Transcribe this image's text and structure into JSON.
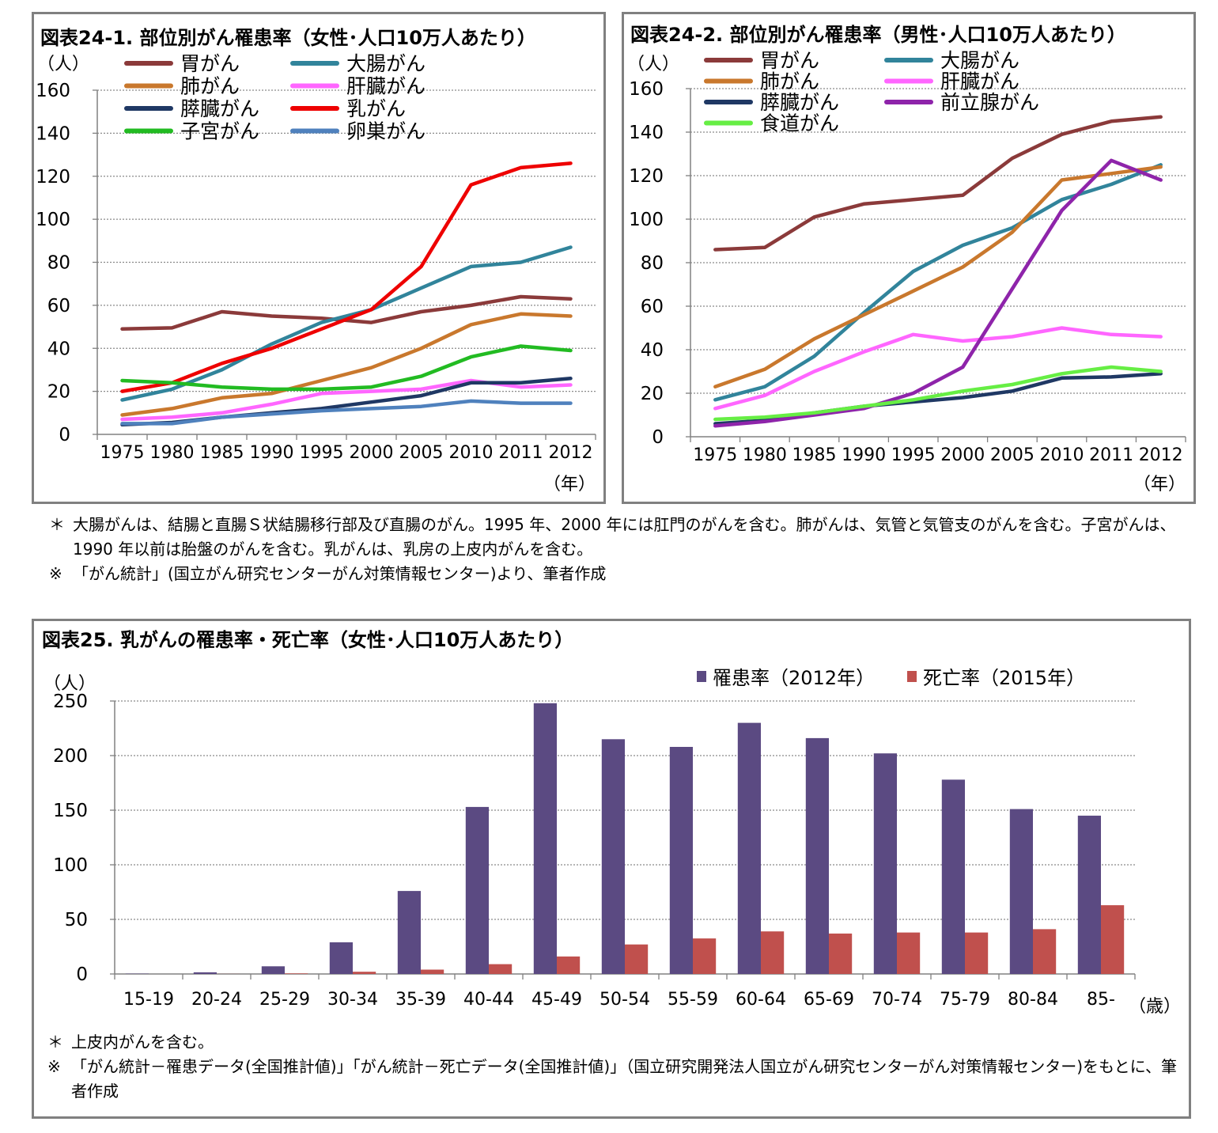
{
  "charts": [
    {
      "title": "図表24-1.  部位別がん罹患率（女性･人口10万人あたり）",
      "unit_label": "（人）",
      "x_axis_suffix": "（年）"
    },
    {
      "title": "図表24-2.  部位別がん罹患率（男性･人口10万人あたり）",
      "unit_label": "（人）",
      "x_axis_suffix": "（年）"
    },
    {
      "title": "図表25.  乳がんの罹患率・死亡率（女性･人口10万人あたり）",
      "unit_label": "（人）",
      "x_axis_suffix": "（歳）"
    }
  ],
  "notes_24": [
    {
      "mark": "＊",
      "text": "大腸がんは、結腸と直腸Ｓ状結腸移行部及び直腸のがん。1995 年、2000 年には肛門のがんを含む。肺がんは、気管と気管支のがんを含む。子宮がんは、1990 年以前は胎盤のがんを含む。乳がんは、乳房の上皮内がんを含む。"
    },
    {
      "mark": "※",
      "text": "「がん統計」(国立がん研究センターがん対策情報センター)より、筆者作成"
    }
  ],
  "notes_25": [
    {
      "mark": "＊",
      "text": "上皮内がんを含む。"
    },
    {
      "mark": "※",
      "text": "「がん統計－罹患データ(全国推計値)」「がん統計－死亡データ(全国推計値)」（国立研究開発法人国立がん研究センターがん対策情報センター)をもとに、筆者作成"
    }
  ],
  "chart_data": [
    {
      "type": "line",
      "title": "図表24-1.  部位別がん罹患率（女性･人口10万人あたり）",
      "ylabel": "（人）",
      "xlabel": "（年）",
      "ylim": [
        0,
        160
      ],
      "yticks": [
        0,
        20,
        40,
        60,
        80,
        100,
        120,
        140,
        160
      ],
      "grid": true,
      "legend_position": "top-left",
      "categories": [
        "1975",
        "1980",
        "1985",
        "1990",
        "1995",
        "2000",
        "2005",
        "2010",
        "2011",
        "2012"
      ],
      "series": [
        {
          "name": "胃がん",
          "color": "#8b3a3a",
          "values": [
            49,
            49.5,
            57,
            55,
            54,
            52,
            57,
            60,
            64,
            63
          ]
        },
        {
          "name": "大腸がん",
          "color": "#31849b",
          "values": [
            16,
            21,
            30,
            42,
            52,
            58,
            68,
            78,
            80,
            87
          ]
        },
        {
          "name": "肺がん",
          "color": "#c9782d",
          "values": [
            9,
            12,
            17,
            19,
            25,
            31,
            40,
            51,
            56,
            55
          ]
        },
        {
          "name": "肝臓がん",
          "color": "#ff66ff",
          "values": [
            7,
            8,
            10,
            14,
            19,
            20,
            21,
            25,
            22,
            23
          ]
        },
        {
          "name": "膵臓がん",
          "color": "#1f3864",
          "values": [
            4.5,
            5.5,
            8,
            10,
            12,
            15,
            18,
            24,
            24,
            26
          ]
        },
        {
          "name": "乳がん",
          "color": "#ee0000",
          "values": [
            20,
            24,
            33,
            40,
            49,
            58,
            78,
            116,
            124,
            126
          ]
        },
        {
          "name": "子宮がん",
          "color": "#22bb22",
          "values": [
            25,
            24,
            22,
            21,
            21,
            22,
            27,
            36,
            41,
            39
          ]
        },
        {
          "name": "卵巣がん",
          "color": "#4f81bd",
          "values": [
            5,
            5,
            8,
            9.5,
            11,
            12,
            13,
            15.5,
            14.5,
            14.5
          ]
        }
      ]
    },
    {
      "type": "line",
      "title": "図表24-2.  部位別がん罹患率（男性･人口10万人あたり）",
      "ylabel": "（人）",
      "xlabel": "（年）",
      "ylim": [
        0,
        160
      ],
      "yticks": [
        0,
        20,
        40,
        60,
        80,
        100,
        120,
        140,
        160
      ],
      "grid": true,
      "legend_position": "top-left",
      "categories": [
        "1975",
        "1980",
        "1985",
        "1990",
        "1995",
        "2000",
        "2005",
        "2010",
        "2011",
        "2012"
      ],
      "series": [
        {
          "name": "胃がん",
          "color": "#8b3a3a",
          "values": [
            86,
            87,
            101,
            107,
            109,
            111,
            128,
            139,
            145,
            147
          ]
        },
        {
          "name": "大腸がん",
          "color": "#31849b",
          "values": [
            17,
            23,
            37,
            57,
            76,
            88,
            96,
            109,
            116,
            125
          ]
        },
        {
          "name": "肺がん",
          "color": "#c9782d",
          "values": [
            23,
            31,
            45,
            56,
            67,
            78,
            94,
            118,
            121,
            124
          ]
        },
        {
          "name": "肝臓がん",
          "color": "#ff66ff",
          "values": [
            13,
            19,
            30,
            39,
            47,
            44,
            46,
            50,
            47,
            46
          ]
        },
        {
          "name": "膵臓がん",
          "color": "#1f3864",
          "values": [
            6,
            7.5,
            11,
            14,
            16,
            18,
            21,
            27,
            27.5,
            29
          ]
        },
        {
          "name": "前立腺がん",
          "color": "#8e24aa",
          "values": [
            5,
            7,
            10,
            13,
            20,
            32,
            68,
            104,
            127,
            118
          ]
        },
        {
          "name": "食道がん",
          "color": "#66ee44",
          "values": [
            8,
            9,
            11,
            14,
            17,
            21,
            24,
            29,
            32,
            30
          ]
        }
      ]
    },
    {
      "type": "bar",
      "title": "図表25.  乳がんの罹患率・死亡率（女性･人口10万人あたり）",
      "ylabel": "（人）",
      "xlabel": "（歳）",
      "ylim": [
        0,
        250
      ],
      "yticks": [
        0,
        50,
        100,
        150,
        200,
        250
      ],
      "grid": true,
      "legend_position": "top-right",
      "categories": [
        "15-19",
        "20-24",
        "25-29",
        "30-34",
        "35-39",
        "40-44",
        "45-49",
        "50-54",
        "55-59",
        "60-64",
        "65-69",
        "70-74",
        "75-79",
        "80-84",
        "85-"
      ],
      "series": [
        {
          "name": "罹患率（2012年）",
          "color": "#5b4a82",
          "values": [
            0.3,
            1.5,
            7,
            29,
            76,
            153,
            248,
            215,
            208,
            230,
            216,
            202,
            178,
            151,
            145
          ]
        },
        {
          "name": "死亡率（2015年）",
          "color": "#c0504d",
          "values": [
            0,
            0.1,
            0.5,
            2,
            4,
            9,
            16,
            27,
            32.5,
            39,
            37,
            38,
            38,
            41,
            63
          ]
        }
      ]
    }
  ]
}
